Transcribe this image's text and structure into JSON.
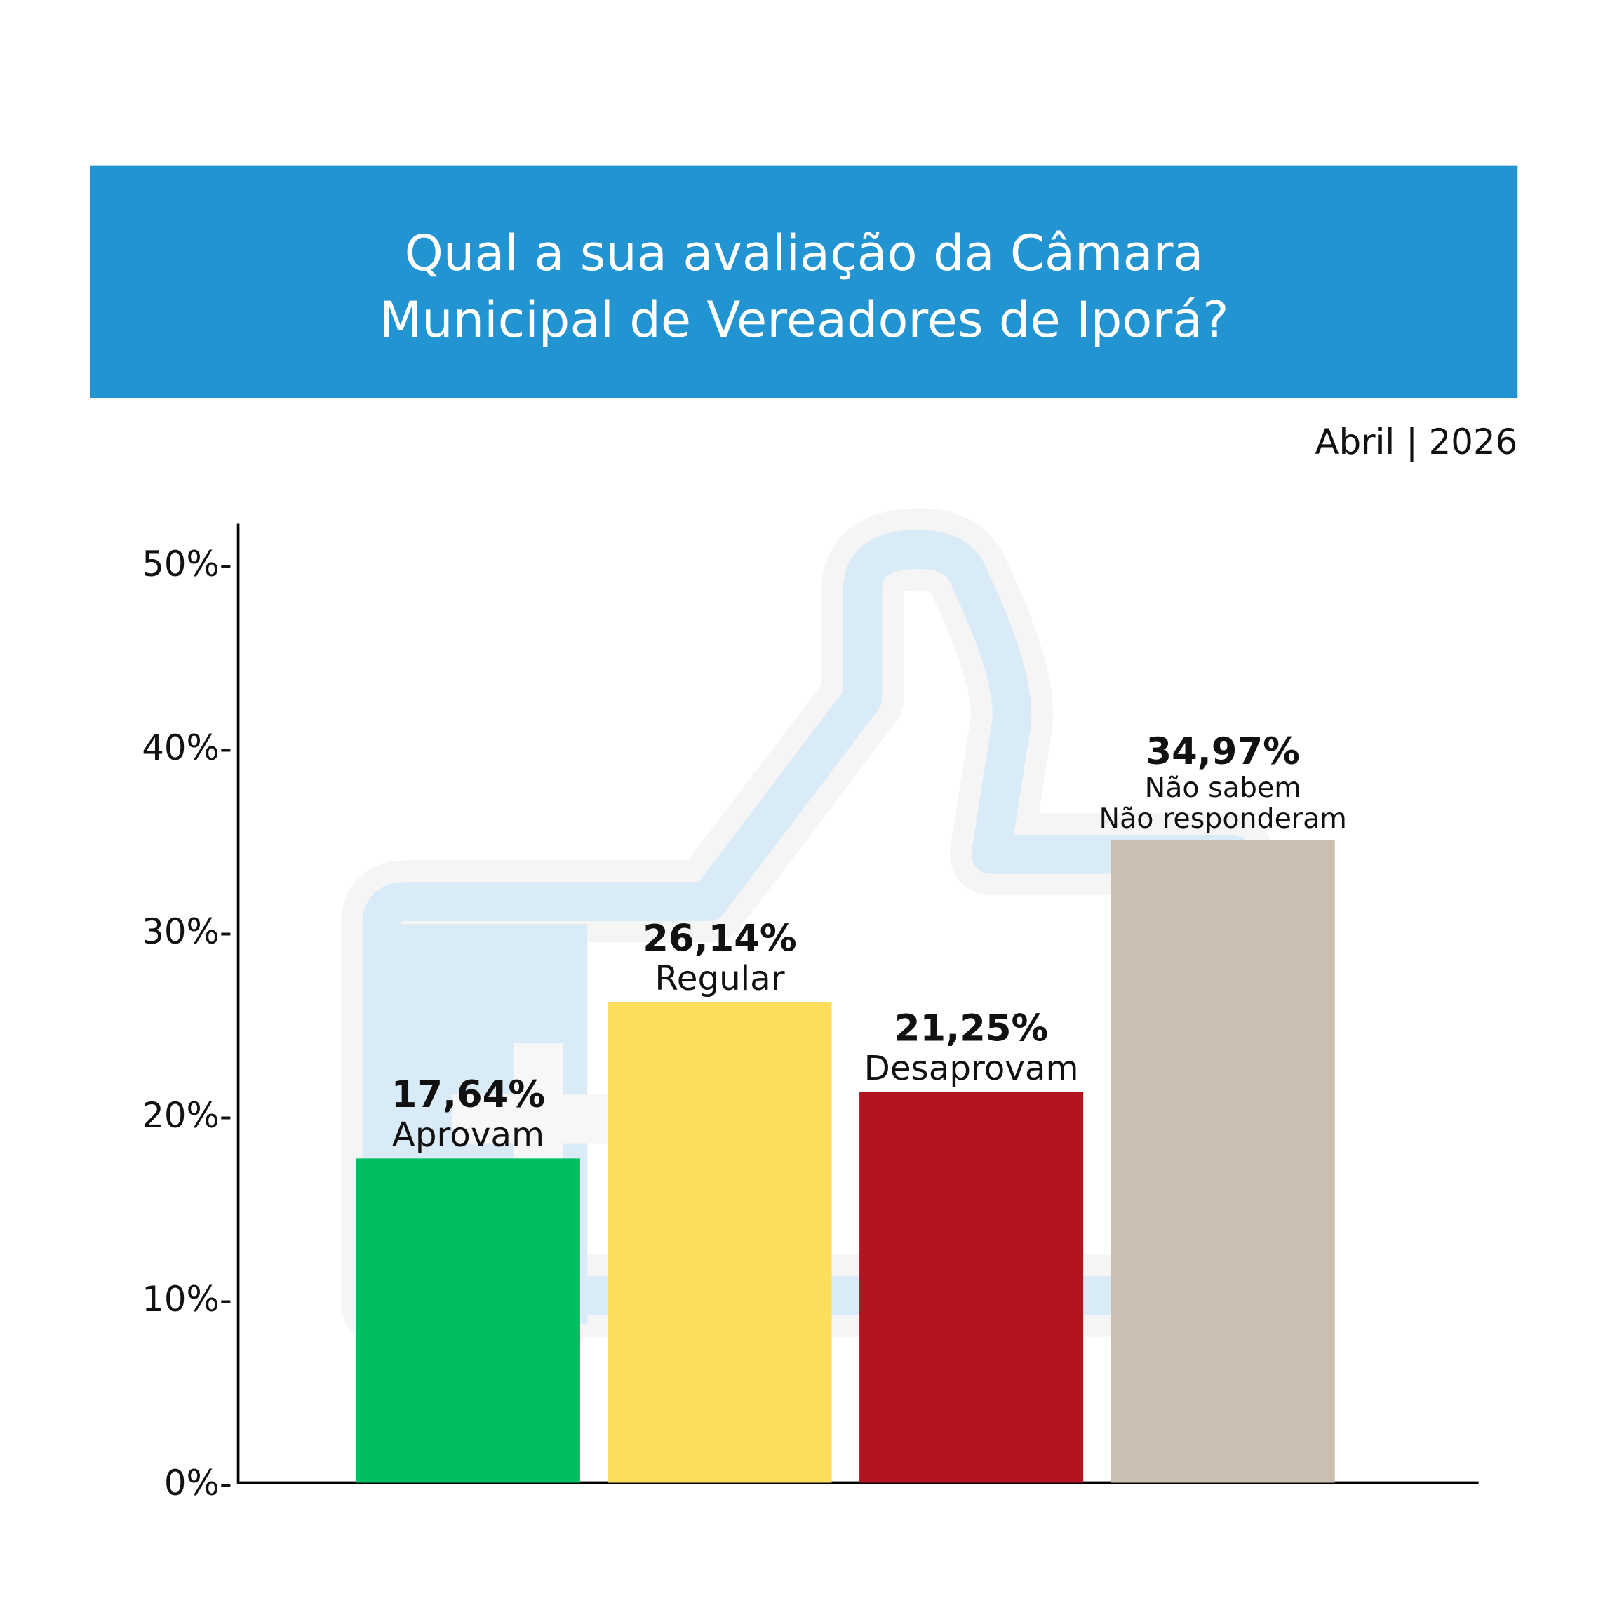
{
  "header": {
    "title_line1": "Qual a sua avaliação da Câmara",
    "title_line2": "Municipal de Vereadores de Iporá?",
    "date": "Abril | 2026"
  },
  "colors": {
    "banner": "#2394d2",
    "watermark": "#d9ebf6"
  },
  "chart_data": {
    "type": "bar",
    "title": "Qual a sua avaliação da Câmara Municipal de Vereadores de Iporá?",
    "xlabel": "",
    "ylabel": "",
    "ylim": [
      0,
      50
    ],
    "yticks": [
      0,
      10,
      20,
      30,
      40,
      50
    ],
    "ytick_labels": [
      "0%-",
      "10%-",
      "20%-",
      "30%-",
      "40%-",
      "50%-"
    ],
    "grid": false,
    "categories": [
      "Aprovam",
      "Regular",
      "Desaprovam",
      "Não sabem / Não responderam"
    ],
    "bars": [
      {
        "value": 17.64,
        "value_label": "17,64%",
        "label_lines": [
          "Aprovam"
        ],
        "color": "#00bf63"
      },
      {
        "value": 26.14,
        "value_label": "26,14%",
        "label_lines": [
          "Regular"
        ],
        "color": "#fddd5c"
      },
      {
        "value": 21.25,
        "value_label": "21,25%",
        "label_lines": [
          "Desaprovam"
        ],
        "color": "#b2151f"
      },
      {
        "value": 34.97,
        "value_label": "34,97%",
        "label_lines": [
          "Não sabem",
          "Não responderam"
        ],
        "color": "#cbbfb1"
      }
    ]
  }
}
